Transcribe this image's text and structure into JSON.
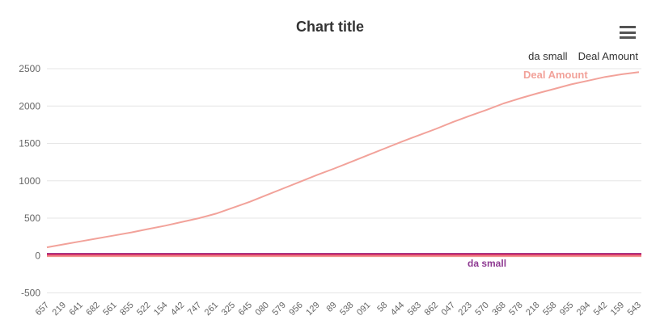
{
  "chart": {
    "title": "Chart title",
    "menu_icon": "hamburger-icon"
  },
  "chart_data": {
    "type": "line",
    "title": "Chart title",
    "xlabel": "",
    "ylabel": "",
    "ylim": [
      -500,
      2500
    ],
    "yticks": [
      2500,
      2000,
      1500,
      1000,
      500,
      0,
      -500
    ],
    "grid": true,
    "legend_position": "top-right",
    "legend": [
      "da small",
      "Deal Amount"
    ],
    "categories": [
      "657",
      "219",
      "641",
      "682",
      "561",
      "855",
      "522",
      "154",
      "442",
      "747",
      "261",
      "325",
      "645",
      "080",
      "579",
      "956",
      "129",
      "89",
      "538",
      "091",
      "58",
      "444",
      "583",
      "862",
      "047",
      "223",
      "570",
      "368",
      "578",
      "218",
      "558",
      "955",
      "294",
      "542",
      "159",
      "543"
    ],
    "series": [
      {
        "name": "Deal Amount",
        "color": "#f2a29a",
        "values": [
          110,
          150,
          190,
          230,
          270,
          310,
          355,
          400,
          450,
          500,
          560,
          640,
          720,
          810,
          900,
          990,
          1080,
          1165,
          1255,
          1345,
          1435,
          1525,
          1610,
          1695,
          1785,
          1870,
          1950,
          2035,
          2105,
          2170,
          2230,
          2290,
          2340,
          2390,
          2425,
          2455
        ]
      },
      {
        "name": "da small",
        "color": "#8e3a92",
        "values": [
          6,
          6,
          6,
          6,
          6,
          6,
          6,
          6,
          6,
          6,
          6,
          6,
          6,
          6,
          6,
          6,
          6,
          6,
          6,
          6,
          6,
          6,
          6,
          6,
          6,
          6,
          6,
          6,
          6,
          6,
          6,
          6,
          6,
          6,
          6,
          6
        ]
      }
    ],
    "flat_band": {
      "comment_values_near_zero": [
        22,
        6,
        -10
      ],
      "colors": [
        "#8a3a96",
        "#d2356b",
        "#f2948c"
      ],
      "widths": [
        2.5,
        4,
        2
      ]
    },
    "axis_label_color": "#666666",
    "grid_color": "#e6e6e6",
    "x_label_rotation": -45
  }
}
